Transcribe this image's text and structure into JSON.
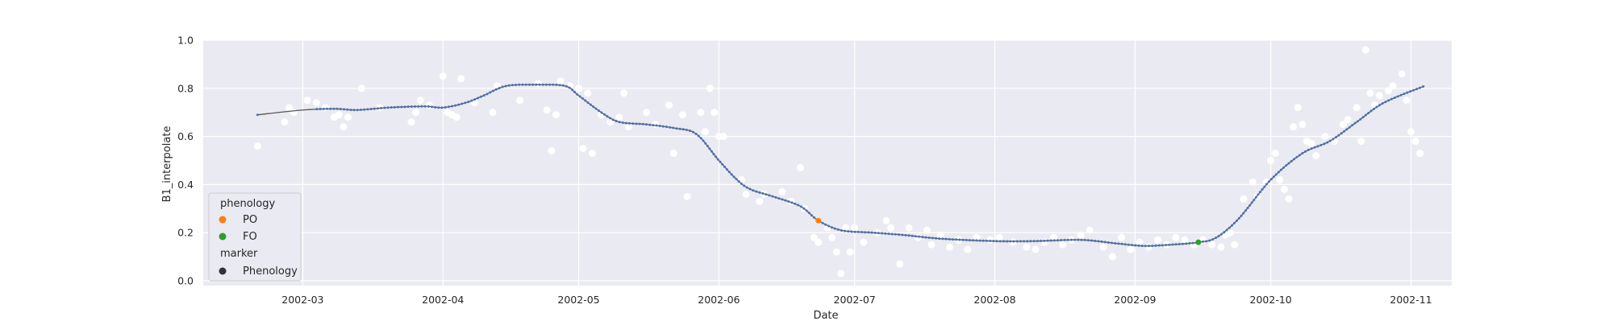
{
  "chart_data": {
    "type": "scatter",
    "xlabel": "Date",
    "ylabel": "B1_interpolate",
    "x_domain": [
      "2002-02-07",
      "2002-11-10"
    ],
    "ylim": [
      -0.02,
      1.0
    ],
    "x_ticks": [
      "2002-03-01",
      "2002-04-01",
      "2002-05-01",
      "2002-06-01",
      "2002-07-01",
      "2002-08-01",
      "2002-09-01",
      "2002-10-01",
      "2002-11-01"
    ],
    "x_tick_labels": [
      "2002-03",
      "2002-04",
      "2002-05",
      "2002-06",
      "2002-07",
      "2002-08",
      "2002-09",
      "2002-10",
      "2002-11"
    ],
    "y_ticks": [
      0.0,
      0.2,
      0.4,
      0.6,
      0.8,
      1.0
    ],
    "y_tick_labels": [
      "0.0",
      "0.2",
      "0.4",
      "0.6",
      "0.8",
      "1.0"
    ],
    "grid": true,
    "background": "#eaeaf2",
    "legend": {
      "placement": "lower-left",
      "hue_title": "phenology",
      "marker_title": "marker",
      "entries": [
        {
          "label": "PO",
          "color": "#ff7f0e"
        },
        {
          "label": "FO",
          "color": "#2ca02c"
        },
        {
          "label": "Phenology",
          "color": "#333333"
        }
      ]
    },
    "series": [
      {
        "role": "observations",
        "color": "#ffffff",
        "points": [
          [
            "2002-02-19",
            0.56
          ],
          [
            "2002-02-25",
            0.66
          ],
          [
            "2002-02-26",
            0.72
          ],
          [
            "2002-02-27",
            0.7
          ],
          [
            "2002-03-02",
            0.75
          ],
          [
            "2002-03-04",
            0.74
          ],
          [
            "2002-03-06",
            0.72
          ],
          [
            "2002-03-08",
            0.68
          ],
          [
            "2002-03-09",
            0.69
          ],
          [
            "2002-03-10",
            0.64
          ],
          [
            "2002-03-11",
            0.68
          ],
          [
            "2002-03-14",
            0.8
          ],
          [
            "2002-03-18",
            0.72
          ],
          [
            "2002-03-25",
            0.66
          ],
          [
            "2002-03-26",
            0.7
          ],
          [
            "2002-03-27",
            0.75
          ],
          [
            "2002-03-29",
            0.73
          ],
          [
            "2002-04-01",
            0.85
          ],
          [
            "2002-04-02",
            0.7
          ],
          [
            "2002-04-03",
            0.69
          ],
          [
            "2002-04-04",
            0.68
          ],
          [
            "2002-04-05",
            0.84
          ],
          [
            "2002-04-08",
            0.74
          ],
          [
            "2002-04-12",
            0.7
          ],
          [
            "2002-04-13",
            0.81
          ],
          [
            "2002-04-18",
            0.75
          ],
          [
            "2002-04-22",
            0.82
          ],
          [
            "2002-04-24",
            0.71
          ],
          [
            "2002-04-25",
            0.54
          ],
          [
            "2002-04-26",
            0.69
          ],
          [
            "2002-04-27",
            0.83
          ],
          [
            "2002-04-29",
            0.81
          ],
          [
            "2002-05-01",
            0.8
          ],
          [
            "2002-05-02",
            0.55
          ],
          [
            "2002-05-03",
            0.78
          ],
          [
            "2002-05-04",
            0.53
          ],
          [
            "2002-05-06",
            0.69
          ],
          [
            "2002-05-08",
            0.66
          ],
          [
            "2002-05-10",
            0.68
          ],
          [
            "2002-05-11",
            0.78
          ],
          [
            "2002-05-12",
            0.64
          ],
          [
            "2002-05-16",
            0.7
          ],
          [
            "2002-05-18",
            0.65
          ],
          [
            "2002-05-21",
            0.73
          ],
          [
            "2002-05-22",
            0.53
          ],
          [
            "2002-05-24",
            0.69
          ],
          [
            "2002-05-25",
            0.35
          ],
          [
            "2002-05-28",
            0.7
          ],
          [
            "2002-05-29",
            0.62
          ],
          [
            "2002-05-30",
            0.8
          ],
          [
            "2002-05-31",
            0.7
          ],
          [
            "2002-06-01",
            0.6
          ],
          [
            "2002-06-02",
            0.6
          ],
          [
            "2002-06-06",
            0.42
          ],
          [
            "2002-06-07",
            0.36
          ],
          [
            "2002-06-10",
            0.33
          ],
          [
            "2002-06-11",
            0.36
          ],
          [
            "2002-06-15",
            0.37
          ],
          [
            "2002-06-17",
            0.33
          ],
          [
            "2002-06-19",
            0.47
          ],
          [
            "2002-06-20",
            0.3
          ],
          [
            "2002-06-22",
            0.18
          ],
          [
            "2002-06-23",
            0.16
          ],
          [
            "2002-06-25",
            0.22
          ],
          [
            "2002-06-26",
            0.18
          ],
          [
            "2002-06-27",
            0.12
          ],
          [
            "2002-06-28",
            0.03
          ],
          [
            "2002-06-29",
            0.22
          ],
          [
            "2002-06-30",
            0.12
          ],
          [
            "2002-07-01",
            0.22
          ],
          [
            "2002-07-03",
            0.16
          ],
          [
            "2002-07-06",
            0.2
          ],
          [
            "2002-07-08",
            0.25
          ],
          [
            "2002-07-09",
            0.22
          ],
          [
            "2002-07-11",
            0.07
          ],
          [
            "2002-07-13",
            0.22
          ],
          [
            "2002-07-15",
            0.18
          ],
          [
            "2002-07-17",
            0.21
          ],
          [
            "2002-07-18",
            0.15
          ],
          [
            "2002-07-20",
            0.19
          ],
          [
            "2002-07-22",
            0.14
          ],
          [
            "2002-07-24",
            0.17
          ],
          [
            "2002-07-26",
            0.13
          ],
          [
            "2002-07-28",
            0.18
          ],
          [
            "2002-07-31",
            0.17
          ],
          [
            "2002-08-02",
            0.18
          ],
          [
            "2002-08-05",
            0.16
          ],
          [
            "2002-08-08",
            0.14
          ],
          [
            "2002-08-10",
            0.13
          ],
          [
            "2002-08-12",
            0.16
          ],
          [
            "2002-08-14",
            0.18
          ],
          [
            "2002-08-16",
            0.15
          ],
          [
            "2002-08-18",
            0.17
          ],
          [
            "2002-08-20",
            0.19
          ],
          [
            "2002-08-22",
            0.21
          ],
          [
            "2002-08-25",
            0.14
          ],
          [
            "2002-08-27",
            0.1
          ],
          [
            "2002-08-29",
            0.18
          ],
          [
            "2002-08-31",
            0.13
          ],
          [
            "2002-09-02",
            0.16
          ],
          [
            "2002-09-04",
            0.14
          ],
          [
            "2002-09-06",
            0.17
          ],
          [
            "2002-09-08",
            0.15
          ],
          [
            "2002-09-10",
            0.18
          ],
          [
            "2002-09-12",
            0.17
          ],
          [
            "2002-09-14",
            0.15
          ],
          [
            "2002-09-16",
            0.17
          ],
          [
            "2002-09-18",
            0.15
          ],
          [
            "2002-09-20",
            0.14
          ],
          [
            "2002-09-21",
            0.19
          ],
          [
            "2002-09-22",
            0.2
          ],
          [
            "2002-09-23",
            0.15
          ],
          [
            "2002-09-25",
            0.34
          ],
          [
            "2002-09-27",
            0.41
          ],
          [
            "2002-09-28",
            0.35
          ],
          [
            "2002-09-30",
            0.41
          ],
          [
            "2002-10-01",
            0.5
          ],
          [
            "2002-10-02",
            0.53
          ],
          [
            "2002-10-03",
            0.42
          ],
          [
            "2002-10-04",
            0.38
          ],
          [
            "2002-10-05",
            0.34
          ],
          [
            "2002-10-06",
            0.64
          ],
          [
            "2002-10-07",
            0.72
          ],
          [
            "2002-10-08",
            0.65
          ],
          [
            "2002-10-09",
            0.58
          ],
          [
            "2002-10-10",
            0.57
          ],
          [
            "2002-10-11",
            0.52
          ],
          [
            "2002-10-13",
            0.6
          ],
          [
            "2002-10-15",
            0.58
          ],
          [
            "2002-10-17",
            0.65
          ],
          [
            "2002-10-18",
            0.67
          ],
          [
            "2002-10-20",
            0.72
          ],
          [
            "2002-10-21",
            0.58
          ],
          [
            "2002-10-22",
            0.96
          ],
          [
            "2002-10-23",
            0.78
          ],
          [
            "2002-10-24",
            0.73
          ],
          [
            "2002-10-25",
            0.77
          ],
          [
            "2002-10-27",
            0.79
          ],
          [
            "2002-10-28",
            0.81
          ],
          [
            "2002-10-30",
            0.86
          ],
          [
            "2002-10-31",
            0.75
          ],
          [
            "2002-11-01",
            0.62
          ],
          [
            "2002-11-02",
            0.58
          ],
          [
            "2002-11-03",
            0.53
          ]
        ]
      },
      {
        "role": "interpolated-curve",
        "color": "#4c72b0",
        "points": [
          [
            "2002-02-19",
            0.69
          ],
          [
            "2002-03-01",
            0.71
          ],
          [
            "2002-03-08",
            0.715
          ],
          [
            "2002-03-13",
            0.71
          ],
          [
            "2002-03-20",
            0.72
          ],
          [
            "2002-03-28",
            0.725
          ],
          [
            "2002-04-01",
            0.72
          ],
          [
            "2002-04-06",
            0.74
          ],
          [
            "2002-04-10",
            0.77
          ],
          [
            "2002-04-15",
            0.81
          ],
          [
            "2002-04-22",
            0.815
          ],
          [
            "2002-04-28",
            0.81
          ],
          [
            "2002-05-01",
            0.77
          ],
          [
            "2002-05-06",
            0.7
          ],
          [
            "2002-05-10",
            0.66
          ],
          [
            "2002-05-16",
            0.65
          ],
          [
            "2002-05-22",
            0.635
          ],
          [
            "2002-05-27",
            0.61
          ],
          [
            "2002-06-01",
            0.5
          ],
          [
            "2002-06-05",
            0.42
          ],
          [
            "2002-06-08",
            0.38
          ],
          [
            "2002-06-13",
            0.35
          ],
          [
            "2002-06-19",
            0.31
          ],
          [
            "2002-06-23",
            0.25
          ],
          [
            "2002-06-28",
            0.21
          ],
          [
            "2002-07-05",
            0.2
          ],
          [
            "2002-07-12",
            0.19
          ],
          [
            "2002-07-20",
            0.175
          ],
          [
            "2002-08-01",
            0.165
          ],
          [
            "2002-08-10",
            0.165
          ],
          [
            "2002-08-20",
            0.17
          ],
          [
            "2002-08-28",
            0.155
          ],
          [
            "2002-09-03",
            0.145
          ],
          [
            "2002-09-09",
            0.15
          ],
          [
            "2002-09-15",
            0.16
          ],
          [
            "2002-09-19",
            0.18
          ],
          [
            "2002-09-24",
            0.26
          ],
          [
            "2002-10-01",
            0.42
          ],
          [
            "2002-10-08",
            0.53
          ],
          [
            "2002-10-14",
            0.58
          ],
          [
            "2002-10-20",
            0.66
          ],
          [
            "2002-10-26",
            0.74
          ],
          [
            "2002-11-04",
            0.81
          ]
        ]
      },
      {
        "role": "phenology-points",
        "points": [
          {
            "label": "PO",
            "x": "2002-06-23",
            "y": 0.25,
            "color": "#ff7f0e"
          },
          {
            "label": "FO",
            "x": "2002-09-15",
            "y": 0.16,
            "color": "#2ca02c"
          }
        ]
      }
    ]
  }
}
